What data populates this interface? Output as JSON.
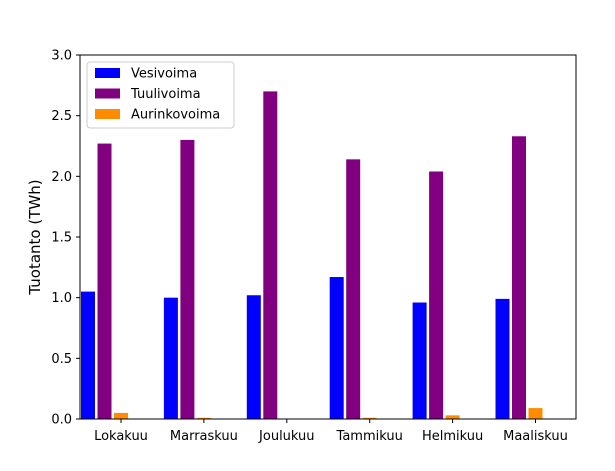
{
  "chart_data": {
    "type": "bar",
    "title": "",
    "xlabel": "",
    "ylabel": "Tuotanto (TWh)",
    "categories": [
      "Lokakuu",
      "Marraskuu",
      "Joulukuu",
      "Tammikuu",
      "Helmikuu",
      "Maaliskuu"
    ],
    "series": [
      {
        "name": "Vesivoima",
        "color": "#0000ff",
        "values": [
          1.05,
          1.0,
          1.02,
          1.17,
          0.96,
          0.99
        ]
      },
      {
        "name": "Tuulivoima",
        "color": "#800080",
        "values": [
          2.27,
          2.3,
          2.7,
          2.14,
          2.04,
          2.33
        ]
      },
      {
        "name": "Aurinkovoima",
        "color": "#ff8c00",
        "values": [
          0.05,
          0.01,
          0.0,
          0.01,
          0.03,
          0.09
        ]
      }
    ],
    "ylim": [
      0,
      3.0
    ],
    "yticks": [
      "0.0",
      "0.5",
      "1.0",
      "1.5",
      "2.0",
      "2.5",
      "3.0"
    ],
    "grid": false,
    "legend_position": "top-left"
  }
}
